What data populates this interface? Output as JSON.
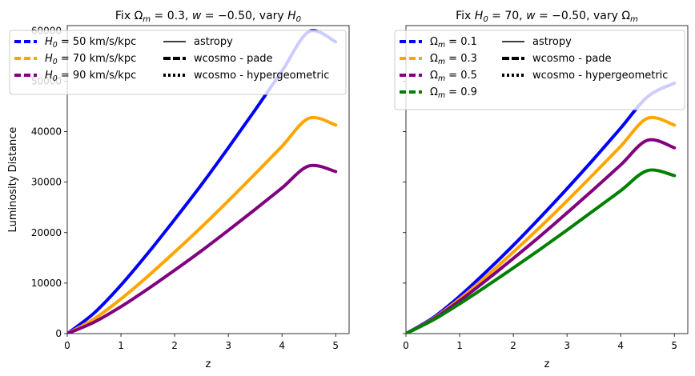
{
  "chart_data": [
    {
      "type": "line",
      "title": "Fix Ωm = 0.3, w = −0.50, vary H0",
      "xlabel": "z",
      "ylabel": "Luminosity Distance",
      "xlim": [
        0,
        5.25
      ],
      "ylim": [
        0,
        61000
      ],
      "xticks": [
        "0",
        "1",
        "2",
        "3",
        "4",
        "5"
      ],
      "yticks": [
        "0",
        "10000",
        "20000",
        "30000",
        "40000",
        "50000",
        "60000"
      ],
      "grid": false,
      "legend_placement": "top",
      "legend_entries": [
        "astropy",
        "wcosmo - pade",
        "wcosmo - hypergeometric"
      ],
      "x": [
        0,
        0.5,
        1,
        1.5,
        2,
        2.5,
        3,
        3.5,
        4,
        4.5,
        5
      ],
      "series": [
        {
          "name": "H0 = 50 km/s/kpc",
          "color": "#0000ff",
          "values": [
            0,
            4070,
            9600,
            15900,
            22600,
            29500,
            36800,
            44300,
            52000,
            59800,
            57800
          ]
        },
        {
          "name": "H0 = 70 km/s/kpc",
          "color": "#ffa500",
          "values": [
            0,
            2910,
            6860,
            11350,
            16150,
            21100,
            26300,
            31650,
            37100,
            42650,
            41300
          ]
        },
        {
          "name": "H0 = 90 km/s/kpc",
          "color": "#800080",
          "values": [
            0,
            2260,
            5330,
            8830,
            12550,
            16400,
            20450,
            24600,
            28850,
            33200,
            32100
          ]
        }
      ]
    },
    {
      "type": "line",
      "title": "Fix H0 = 70, w = −0.50, vary Ωm",
      "xlabel": "z",
      "ylabel": "",
      "xlim": [
        0,
        5.25
      ],
      "ylim": [
        0,
        61000
      ],
      "xticks": [
        "0",
        "1",
        "2",
        "3",
        "4",
        "5"
      ],
      "yticks": [],
      "grid": false,
      "legend_placement": "top",
      "legend_entries": [
        "astropy",
        "wcosmo - pade",
        "wcosmo - hypergeometric"
      ],
      "x": [
        0,
        0.5,
        1,
        1.5,
        2,
        2.5,
        3,
        3.5,
        4,
        4.5,
        5
      ],
      "series": [
        {
          "name": "Ωm = 0.1",
          "color": "#0000ff",
          "values": [
            0,
            3100,
            7400,
            12300,
            17500,
            23000,
            28700,
            34600,
            40700,
            46900,
            49600
          ]
        },
        {
          "name": "Ωm = 0.3",
          "color": "#ffa500",
          "values": [
            0,
            2910,
            6860,
            11350,
            16150,
            21100,
            26300,
            31650,
            37100,
            42650,
            41300
          ]
        },
        {
          "name": "Ωm = 0.5",
          "color": "#800080",
          "values": [
            0,
            2800,
            6500,
            10600,
            14900,
            19300,
            23900,
            28600,
            33400,
            38300,
            36800
          ]
        },
        {
          "name": "Ωm = 0.9",
          "color": "#008000",
          "values": [
            0,
            2650,
            5900,
            9400,
            13000,
            16700,
            20500,
            24400,
            28300,
            32300,
            31300
          ]
        }
      ]
    }
  ]
}
